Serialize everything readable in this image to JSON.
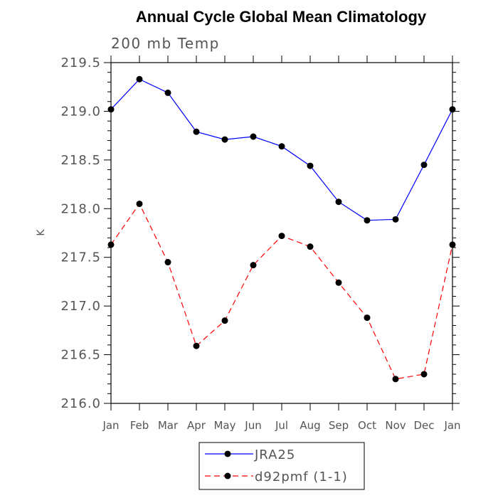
{
  "chart_data": {
    "type": "line",
    "title": "Annual Cycle Global Mean Climatology",
    "subtitle": "200 mb Temp",
    "ylabel": "K",
    "xlabel": "",
    "categories": [
      "Jan",
      "Feb",
      "Mar",
      "Apr",
      "May",
      "Jun",
      "Jul",
      "Aug",
      "Sep",
      "Oct",
      "Nov",
      "Dec",
      "Jan"
    ],
    "ylim": [
      216.0,
      219.5
    ],
    "yticks": [
      "216.0",
      "216.5",
      "217.0",
      "217.5",
      "218.0",
      "218.5",
      "219.0",
      "219.5"
    ],
    "grid": false,
    "legend_position": "bottom",
    "series": [
      {
        "name": "JRA25",
        "color": "#0000ff",
        "line_style": "solid",
        "marker": "filled-circle",
        "values": [
          219.02,
          219.33,
          219.19,
          218.79,
          218.71,
          218.74,
          218.64,
          218.44,
          218.07,
          217.88,
          217.89,
          218.45,
          219.02
        ]
      },
      {
        "name": "d92pmf (1-1)",
        "color": "#ff0000",
        "line_style": "dashed",
        "marker": "filled-circle",
        "values": [
          217.63,
          218.05,
          217.45,
          216.59,
          216.85,
          217.42,
          217.72,
          217.61,
          217.24,
          216.88,
          216.25,
          216.3,
          217.63
        ]
      }
    ]
  }
}
